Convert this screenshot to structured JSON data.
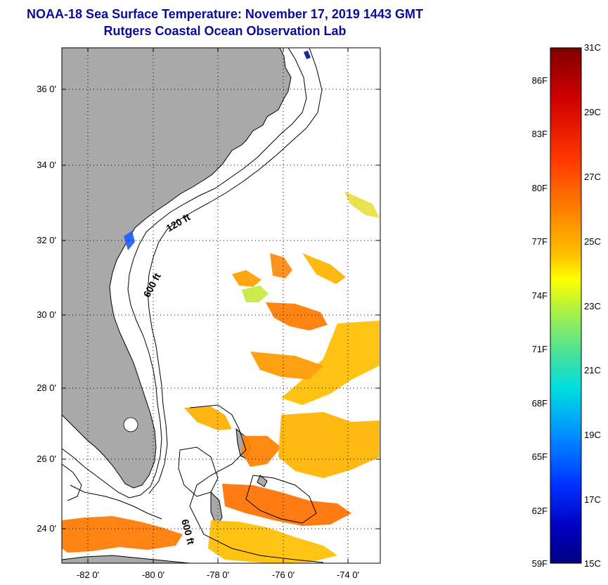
{
  "title": "NOAA-18 Sea Surface Temperature:  November 17, 2019 1443 GMT",
  "subtitle": "Rutgers Coastal Ocean Observation Lab",
  "map": {
    "lat_labels": [
      "36 0'",
      "34 0'",
      "32 0'",
      "30 0'",
      "28 0'",
      "26 0'",
      "24 0'"
    ],
    "lon_labels": [
      "-82 0'",
      "-80 0'",
      "-78 0'",
      "-76 0'",
      "-74 0'"
    ],
    "contour_labels": [
      "120 ft",
      "600 ft",
      "600 ft"
    ],
    "land_color": "#a9a9a9",
    "water_color": "#ffffff"
  },
  "colorbar": {
    "celsius_labels": [
      "31C",
      "29C",
      "27C",
      "25C",
      "23C",
      "21C",
      "19C",
      "17C",
      "15C"
    ],
    "fahrenheit_labels": [
      "86F",
      "83F",
      "80F",
      "77F",
      "74F",
      "71F",
      "68F",
      "65F",
      "62F",
      "59F"
    ],
    "colors": [
      "#800000",
      "#d00000",
      "#ff3000",
      "#ff7a00",
      "#ffb400",
      "#ffe600",
      "#c8f040",
      "#60e890",
      "#00e0e0",
      "#0090ff",
      "#0030ff",
      "#0000c0",
      "#000080"
    ]
  }
}
